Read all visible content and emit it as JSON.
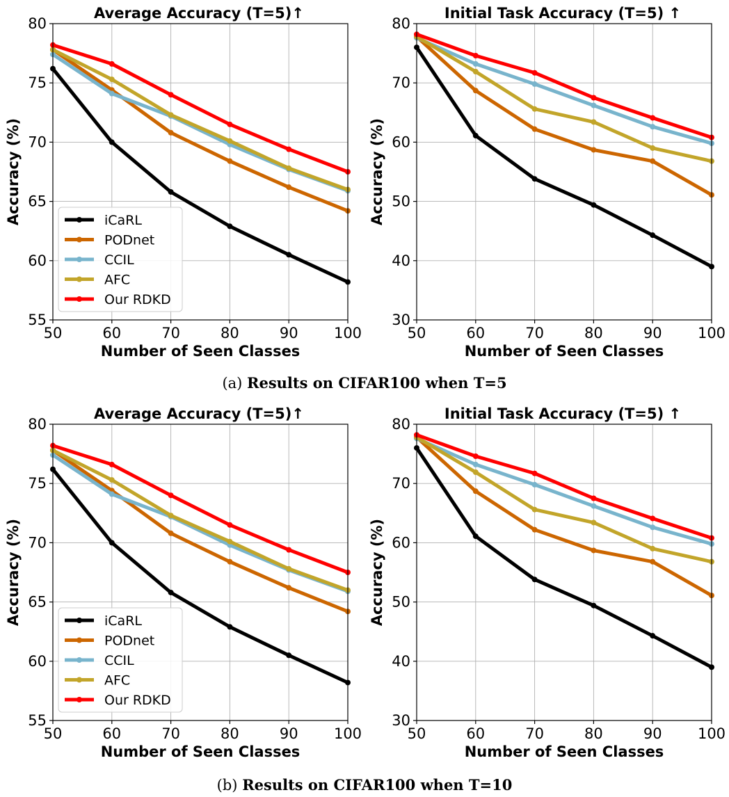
{
  "series_styles": [
    {
      "name": "iCaRL",
      "color": "#000000"
    },
    {
      "name": "PODnet",
      "color": "#cc6600"
    },
    {
      "name": "CCIL",
      "color": "#78b4cc"
    },
    {
      "name": "AFC",
      "color": "#c2a52a"
    },
    {
      "name": "Our RDKD",
      "color": "#ff0000"
    }
  ],
  "captions": [
    {
      "label": "(a)",
      "text": "Results on CIFAR100 when T=5"
    },
    {
      "label": "(b)",
      "text": "Results on CIFAR100 when T=10"
    }
  ],
  "chart_data": [
    {
      "type": "line",
      "title": "Average Accuracy (T=5)↑",
      "xlabel": "Number of Seen Classes",
      "ylabel": "Accuracy (%)",
      "x": [
        50,
        60,
        70,
        80,
        90,
        100
      ],
      "xticks": [
        50,
        60,
        70,
        80,
        90,
        100
      ],
      "yticks": [
        55,
        60,
        65,
        70,
        75,
        80
      ],
      "xlim": [
        50,
        100
      ],
      "ylim": [
        55,
        80
      ],
      "grid": true,
      "legend": "lower-left",
      "series": [
        {
          "name": "iCaRL",
          "values": [
            76.2,
            70.0,
            65.8,
            62.9,
            60.5,
            58.2
          ]
        },
        {
          "name": "PODnet",
          "values": [
            77.8,
            74.4,
            70.8,
            68.4,
            66.2,
            64.2
          ]
        },
        {
          "name": "CCIL",
          "values": [
            77.4,
            74.1,
            72.2,
            69.8,
            67.7,
            65.9
          ]
        },
        {
          "name": "AFC",
          "values": [
            77.8,
            75.3,
            72.3,
            70.1,
            67.8,
            66.0
          ]
        },
        {
          "name": "Our RDKD",
          "values": [
            78.2,
            76.6,
            74.0,
            71.5,
            69.4,
            67.5
          ]
        }
      ]
    },
    {
      "type": "line",
      "title": "Initial Task Accuracy (T=5) ↑",
      "xlabel": "Number of Seen Classes",
      "ylabel": "Accuracy (%)",
      "x": [
        50,
        60,
        70,
        80,
        90,
        100
      ],
      "xticks": [
        50,
        60,
        70,
        80,
        90,
        100
      ],
      "yticks": [
        30,
        40,
        50,
        60,
        70,
        80
      ],
      "xlim": [
        50,
        100
      ],
      "ylim": [
        30,
        80
      ],
      "grid": true,
      "legend": "none",
      "series": [
        {
          "name": "iCaRL",
          "values": [
            76.0,
            61.1,
            53.8,
            49.4,
            44.3,
            39.0
          ]
        },
        {
          "name": "PODnet",
          "values": [
            77.8,
            68.7,
            62.2,
            58.7,
            56.8,
            51.1
          ]
        },
        {
          "name": "CCIL",
          "values": [
            77.6,
            73.2,
            69.8,
            66.2,
            62.6,
            59.8
          ]
        },
        {
          "name": "AFC",
          "values": [
            77.8,
            71.9,
            65.6,
            63.4,
            59.0,
            56.8
          ]
        },
        {
          "name": "Our RDKD",
          "values": [
            78.2,
            74.6,
            71.7,
            67.5,
            64.1,
            60.8
          ]
        }
      ]
    },
    {
      "type": "line",
      "title": "Average Accuracy (T=5)↑",
      "xlabel": "Number of Seen Classes",
      "ylabel": "Accuracy (%)",
      "x": [
        50,
        60,
        70,
        80,
        90,
        100
      ],
      "xticks": [
        50,
        60,
        70,
        80,
        90,
        100
      ],
      "yticks": [
        55,
        60,
        65,
        70,
        75,
        80
      ],
      "xlim": [
        50,
        100
      ],
      "ylim": [
        55,
        80
      ],
      "grid": true,
      "legend": "lower-left",
      "series": [
        {
          "name": "iCaRL",
          "values": [
            76.2,
            70.0,
            65.8,
            62.9,
            60.5,
            58.2
          ]
        },
        {
          "name": "PODnet",
          "values": [
            77.8,
            74.4,
            70.8,
            68.4,
            66.2,
            64.2
          ]
        },
        {
          "name": "CCIL",
          "values": [
            77.4,
            74.1,
            72.2,
            69.8,
            67.7,
            65.9
          ]
        },
        {
          "name": "AFC",
          "values": [
            77.8,
            75.3,
            72.3,
            70.1,
            67.8,
            66.0
          ]
        },
        {
          "name": "Our RDKD",
          "values": [
            78.2,
            76.6,
            74.0,
            71.5,
            69.4,
            67.5
          ]
        }
      ]
    },
    {
      "type": "line",
      "title": "Initial Task Accuracy (T=5) ↑",
      "xlabel": "Number of Seen Classes",
      "ylabel": "Accuracy (%)",
      "x": [
        50,
        60,
        70,
        80,
        90,
        100
      ],
      "xticks": [
        50,
        60,
        70,
        80,
        90,
        100
      ],
      "yticks": [
        30,
        40,
        50,
        60,
        70,
        80
      ],
      "xlim": [
        50,
        100
      ],
      "ylim": [
        30,
        80
      ],
      "grid": true,
      "legend": "none",
      "series": [
        {
          "name": "iCaRL",
          "values": [
            76.0,
            61.1,
            53.8,
            49.4,
            44.3,
            39.0
          ]
        },
        {
          "name": "PODnet",
          "values": [
            77.8,
            68.7,
            62.2,
            58.7,
            56.8,
            51.1
          ]
        },
        {
          "name": "CCIL",
          "values": [
            77.6,
            73.2,
            69.8,
            66.2,
            62.6,
            59.8
          ]
        },
        {
          "name": "AFC",
          "values": [
            77.8,
            71.9,
            65.6,
            63.4,
            59.0,
            56.8
          ]
        },
        {
          "name": "Our RDKD",
          "values": [
            78.2,
            74.6,
            71.7,
            67.5,
            64.1,
            60.8
          ]
        }
      ]
    }
  ]
}
